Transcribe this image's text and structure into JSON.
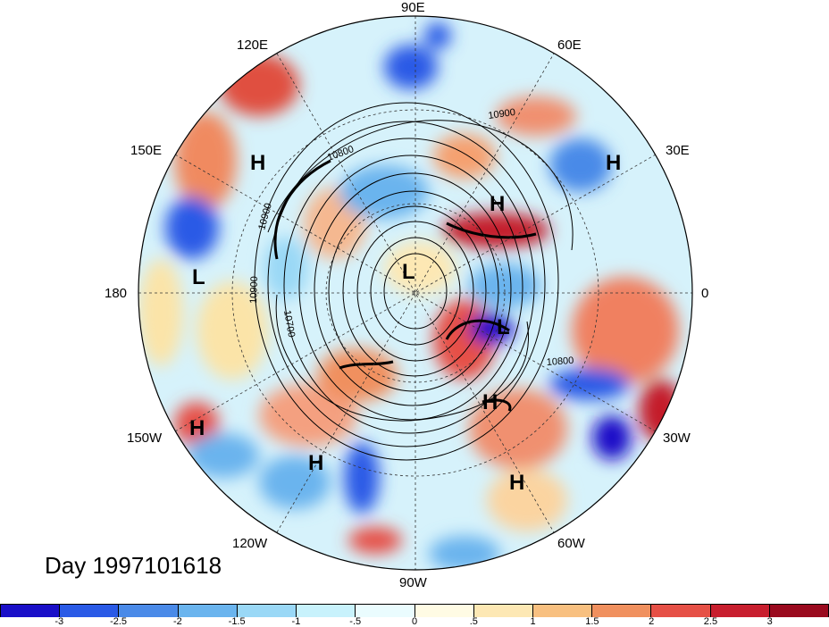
{
  "map": {
    "title": "Day 1997101618",
    "longitude_labels": {
      "north": "90E",
      "ne60": "60E",
      "ne30": "30E",
      "east": "0",
      "se30": "30W",
      "se60": "60W",
      "south": "90W",
      "sw120": "120W",
      "sw150": "150W",
      "west": "180",
      "nw150": "150E",
      "nw120": "120E"
    },
    "pressure_centers": [
      "H",
      "H",
      "H",
      "H",
      "H",
      "H",
      "H",
      "L",
      "L",
      "L"
    ],
    "contour_labels": [
      "10900",
      "10900",
      "10900",
      "10800",
      "10700",
      "10800"
    ],
    "colors": {
      "strong_negative": "#2020c8",
      "negative": "#5aa0e0",
      "weak_negative": "#b8ecfa",
      "neutral": "#ffffff",
      "weak_positive": "#fbe4a8",
      "positive": "#f08060",
      "strong_positive": "#b01020"
    }
  },
  "colorbar": {
    "colors": [
      "#1a0fc8",
      "#2a5ae6",
      "#4a8ae8",
      "#6ab4ee",
      "#9ad8f6",
      "#c8f2fc",
      "#eafcfe",
      "#fffbe4",
      "#fde8b4",
      "#f8c080",
      "#f0905e",
      "#e65046",
      "#c81e2e",
      "#9a0a1e"
    ],
    "tick_labels": [
      "-3",
      "-2.5",
      "-2",
      "-1.5",
      "-1",
      "-.5",
      "0",
      ".5",
      "1",
      "1.5",
      "2",
      "2.5",
      "3"
    ]
  }
}
